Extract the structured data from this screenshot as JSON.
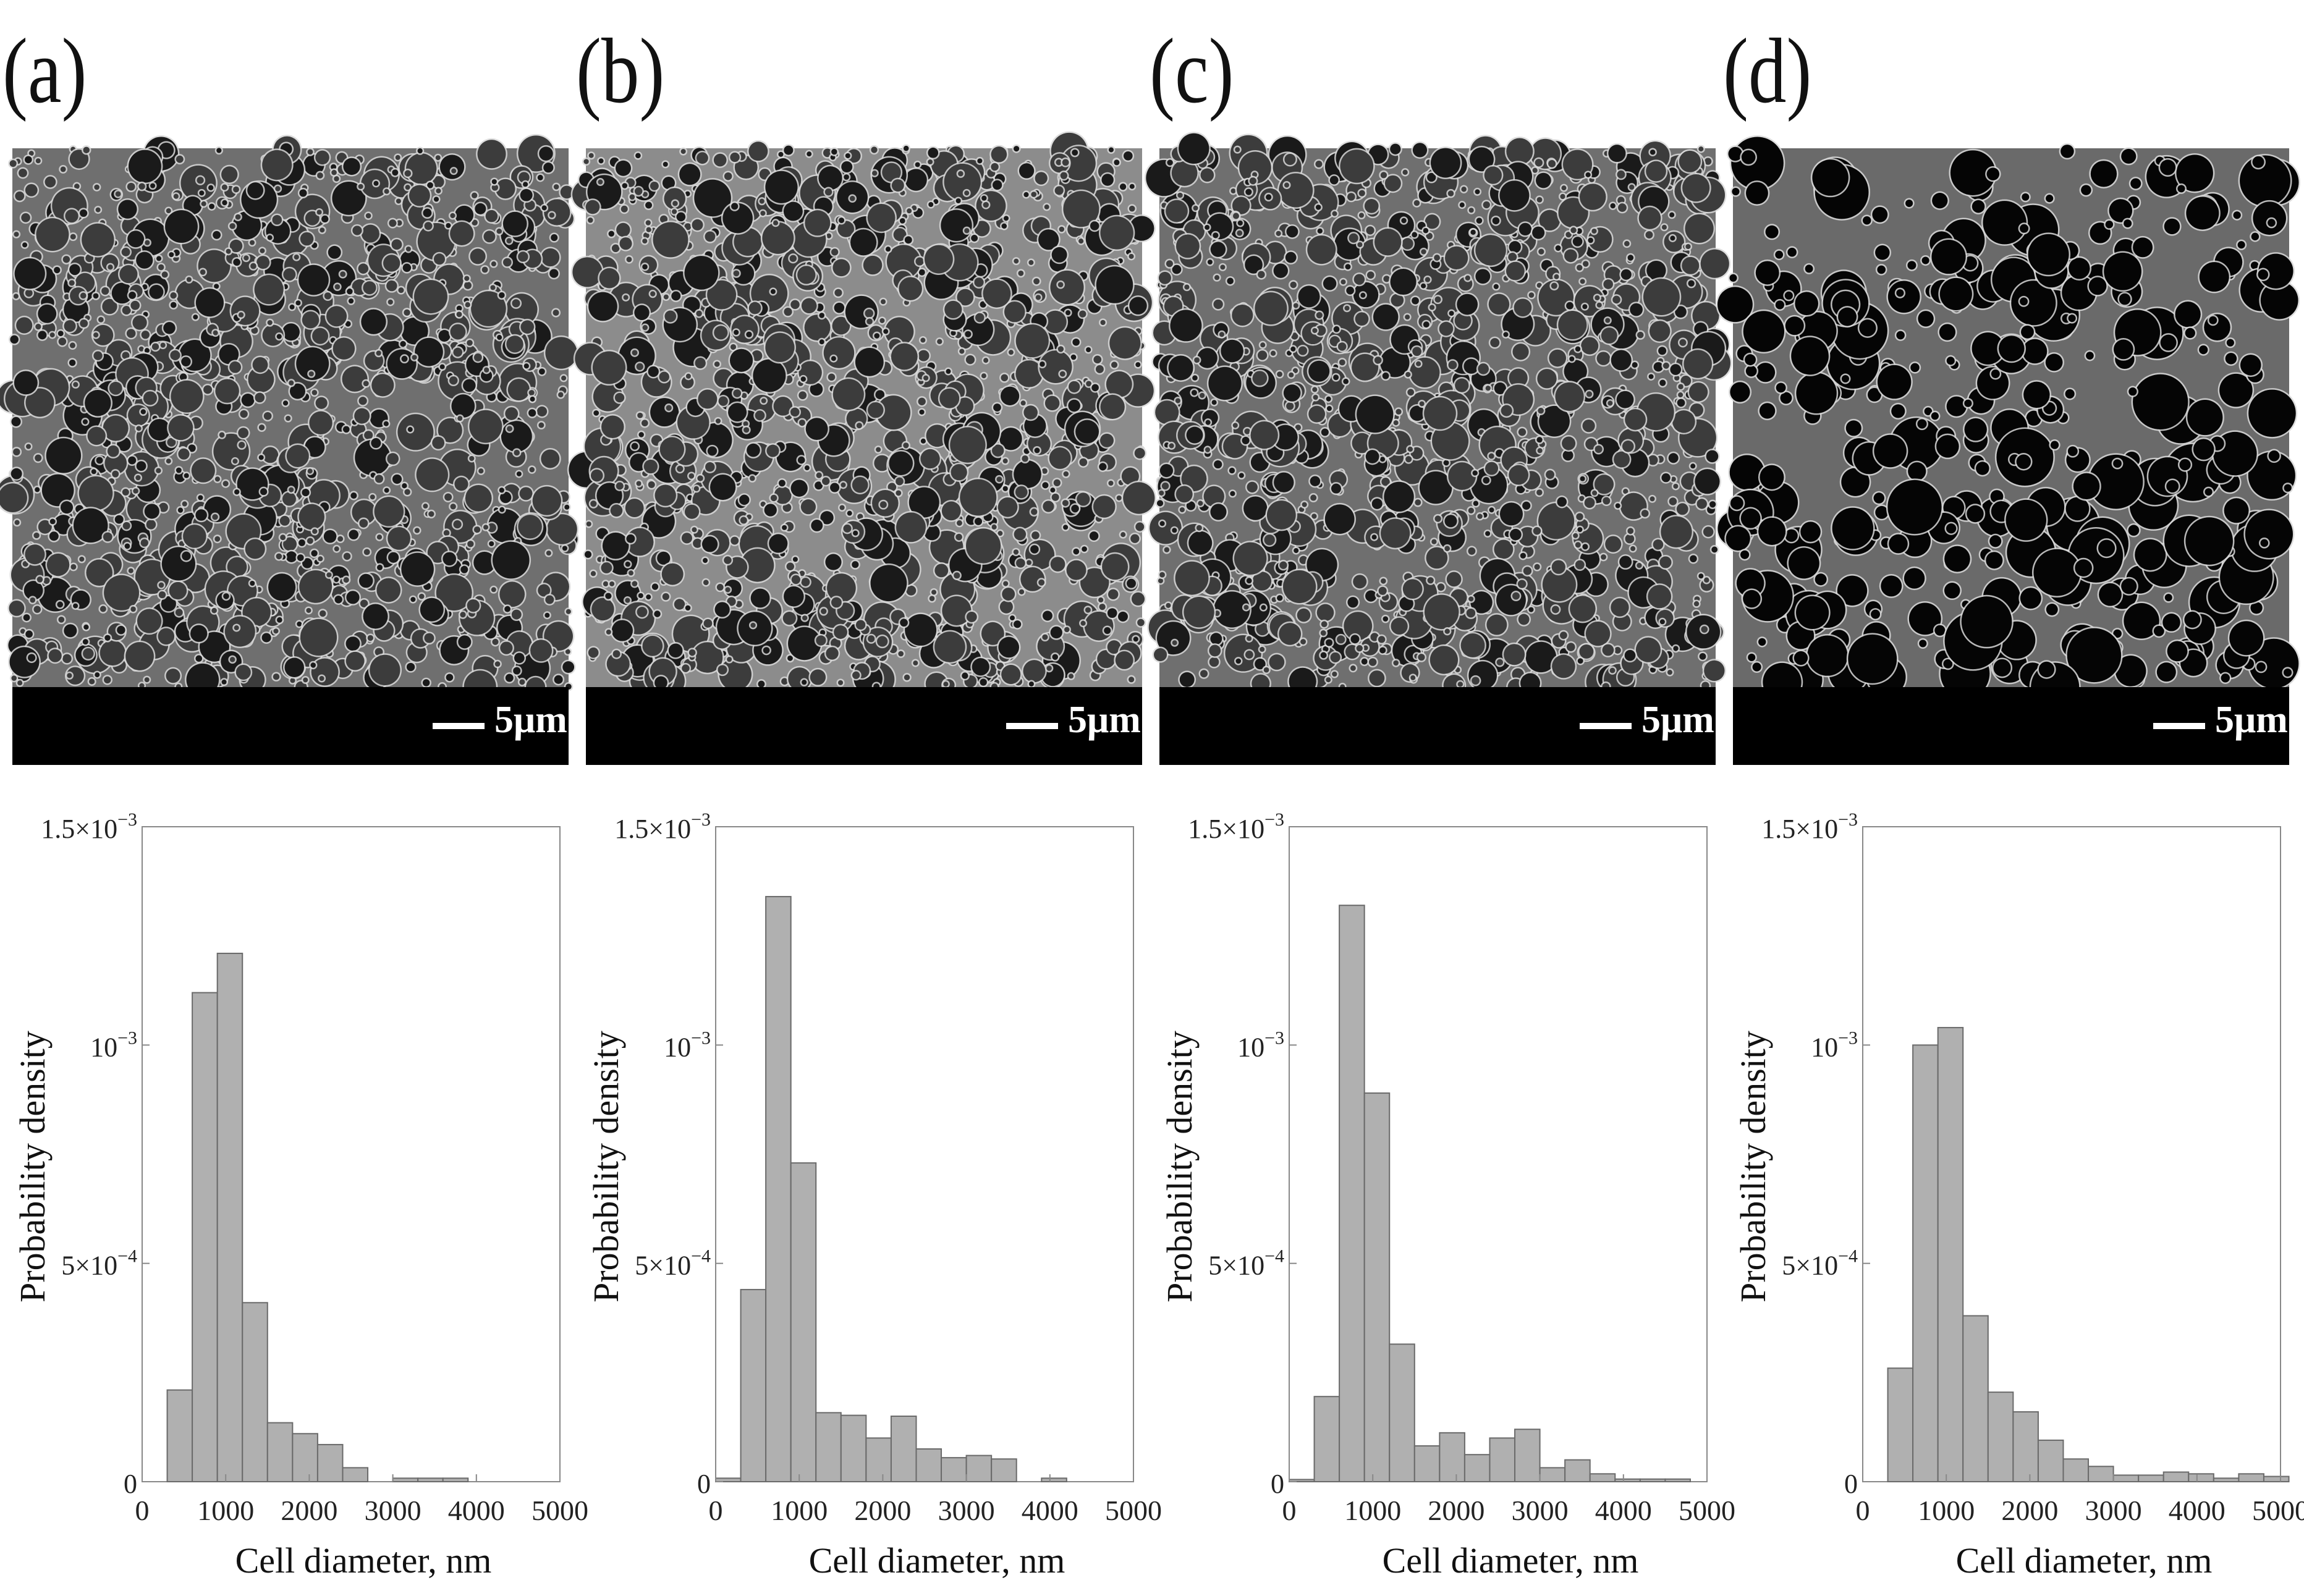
{
  "scale_bar_label": "5μm",
  "colors": {
    "bar_fill": "#b0b0b0",
    "bar_stroke": "#6a6a6a",
    "axis": "#888888"
  },
  "panels": [
    {
      "label": "(a)"
    },
    {
      "label": "(b)"
    },
    {
      "label": "(c)"
    },
    {
      "label": "(d)"
    }
  ],
  "chart_data": [
    {
      "type": "bar",
      "xlabel": "Cell diameter, nm",
      "ylabel": "Probability density",
      "xlim": [
        0,
        5000
      ],
      "ylim": [
        0,
        0.0015
      ],
      "x_ticks": [
        "0",
        "1000",
        "2000",
        "3000",
        "4000",
        "5000"
      ],
      "y_ticks": [
        {
          "base": "0",
          "exp": ""
        },
        {
          "base": "5×10",
          "exp": "−4"
        },
        {
          "base": "10",
          "exp": "−3"
        },
        {
          "base": "1.5×10",
          "exp": "−3"
        }
      ],
      "bin_edges": [
        300,
        600,
        900,
        1200,
        1500,
        1800,
        2100,
        2400,
        2700,
        3000,
        3300,
        3600,
        3900
      ],
      "values": [
        0.00021,
        0.00112,
        0.00121,
        0.00041,
        0.000135,
        0.00011,
        8.5e-05,
        3.2e-05,
        0.0,
        8e-06,
        8e-06,
        8e-06
      ]
    },
    {
      "type": "bar",
      "xlabel": "Cell diameter, nm",
      "ylabel": "Probability density",
      "xlim": [
        0,
        5000
      ],
      "ylim": [
        0,
        0.0015
      ],
      "x_ticks": [
        "0",
        "1000",
        "2000",
        "3000",
        "4000",
        "5000"
      ],
      "y_ticks": [
        {
          "base": "0",
          "exp": ""
        },
        {
          "base": "5×10",
          "exp": "−4"
        },
        {
          "base": "10",
          "exp": "−3"
        },
        {
          "base": "1.5×10",
          "exp": "−3"
        }
      ],
      "bin_edges": [
        0,
        300,
        600,
        900,
        1200,
        1500,
        1800,
        2100,
        2400,
        2700,
        3000,
        3300,
        3600,
        3900,
        4200
      ],
      "values": [
        8e-06,
        0.00044,
        0.00134,
        0.00073,
        0.000158,
        0.000152,
        0.0001,
        0.00015,
        7.5e-05,
        5.5e-05,
        6e-05,
        5.2e-05,
        0.0,
        8e-06
      ]
    },
    {
      "type": "bar",
      "xlabel": "Cell diameter, nm",
      "ylabel": "Probability density",
      "xlim": [
        0,
        5000
      ],
      "ylim": [
        0,
        0.0015
      ],
      "x_ticks": [
        "0",
        "1000",
        "2000",
        "3000",
        "4000",
        "5000"
      ],
      "y_ticks": [
        {
          "base": "0",
          "exp": ""
        },
        {
          "base": "5×10",
          "exp": "−4"
        },
        {
          "base": "10",
          "exp": "−3"
        },
        {
          "base": "1.5×10",
          "exp": "−3"
        }
      ],
      "bin_edges": [
        0,
        300,
        600,
        900,
        1200,
        1500,
        1800,
        2100,
        2400,
        2700,
        3000,
        3300,
        3600,
        3900,
        4200,
        4500,
        4800
      ],
      "values": [
        5e-06,
        0.000195,
        0.00132,
        0.00089,
        0.000315,
        8.2e-05,
        0.000112,
        6.2e-05,
        0.0001,
        0.00012,
        3.2e-05,
        5e-05,
        1.8e-05,
        6e-06,
        6e-06,
        6e-06
      ]
    },
    {
      "type": "bar",
      "xlabel": "Cell diameter, nm",
      "ylabel": "Probability density",
      "xlim": [
        0,
        5000
      ],
      "ylim": [
        0,
        0.0015
      ],
      "x_ticks": [
        "0",
        "1000",
        "2000",
        "3000",
        "4000",
        "5000"
      ],
      "y_ticks": [
        {
          "base": "0",
          "exp": ""
        },
        {
          "base": "5×10",
          "exp": "−4"
        },
        {
          "base": "10",
          "exp": "−3"
        },
        {
          "base": "1.5×10",
          "exp": "−3"
        }
      ],
      "bin_edges": [
        300,
        600,
        900,
        1200,
        1500,
        1800,
        2100,
        2400,
        2700,
        3000,
        3300,
        3600,
        3900,
        4200,
        4500,
        4800,
        5100
      ],
      "values": [
        0.00026,
        0.001,
        0.00104,
        0.00038,
        0.000205,
        0.00016,
        9.5e-05,
        5.2e-05,
        3.5e-05,
        1.5e-05,
        1.5e-05,
        2.2e-05,
        1.8e-05,
        8e-06,
        1.8e-05,
        1.2e-05
      ]
    }
  ]
}
